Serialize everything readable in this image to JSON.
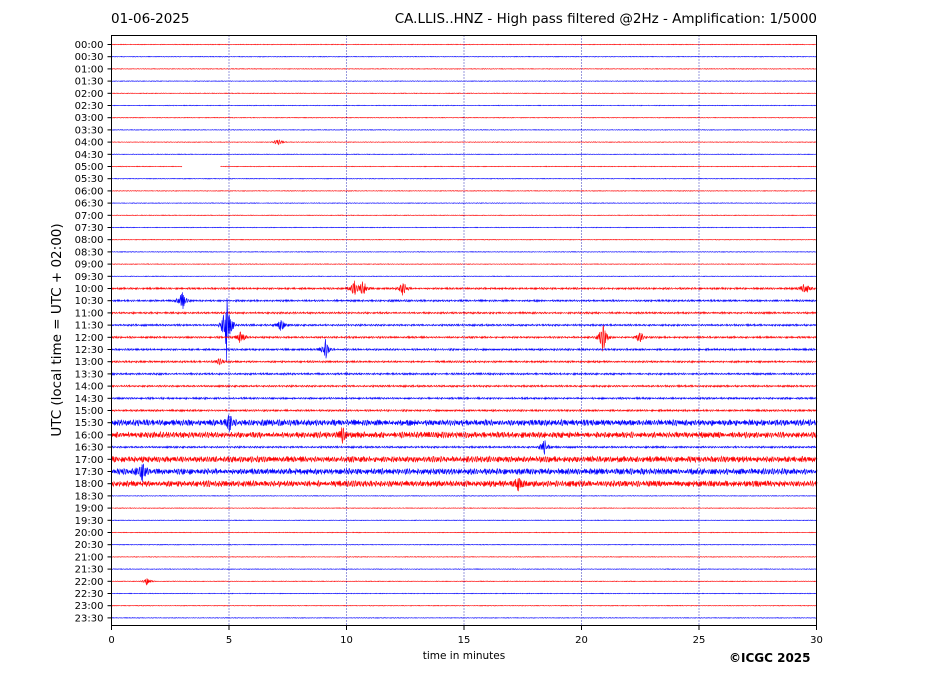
{
  "header": {
    "date": "01-06-2025",
    "title": "CA.LLIS..HNZ - High pass filtered @2Hz - Amplification: 1/5000"
  },
  "footer": {
    "copyright": "©ICGC 2025"
  },
  "chart_data": {
    "type": "line",
    "xlabel": "time in minutes",
    "ylabel": "UTC (local time = UTC + 02:00)",
    "xlim": [
      0,
      30
    ],
    "x_ticks": [
      "0",
      "5",
      "10",
      "15",
      "20",
      "25",
      "30"
    ],
    "y_ticks": [
      "00:00",
      "00:30",
      "01:00",
      "01:30",
      "02:00",
      "02:30",
      "03:00",
      "03:30",
      "04:00",
      "04:30",
      "05:00",
      "05:30",
      "06:00",
      "06:30",
      "07:00",
      "07:30",
      "08:00",
      "08:30",
      "09:00",
      "09:30",
      "10:00",
      "10:30",
      "11:00",
      "11:30",
      "12:00",
      "12:30",
      "13:00",
      "13:30",
      "14:00",
      "14:30",
      "15:00",
      "15:30",
      "16:00",
      "16:30",
      "17:00",
      "17:30",
      "18:00",
      "18:30",
      "19:00",
      "19:30",
      "20:00",
      "20:30",
      "21:00",
      "21:30",
      "22:00",
      "22:30",
      "23:00",
      "23:30"
    ],
    "trace_colors": [
      "#ff0000",
      "#0000ff"
    ],
    "vertical_gridlines_at": [
      5,
      10,
      15,
      20,
      25
    ],
    "noise_level": {
      "low_rows": [
        "00:00-09:30",
        "18:30-23:30"
      ],
      "high_rows": [
        "15:30",
        "16:00",
        "17:00",
        "17:30",
        "18:00"
      ]
    },
    "events": [
      {
        "row": "04:00",
        "minute": 7.1,
        "amplitude": 3
      },
      {
        "row": "05:00",
        "minute": 3.0,
        "amplitude": 0,
        "gap_until": 4.6
      },
      {
        "row": "10:00",
        "minute": 10.3,
        "amplitude": 7
      },
      {
        "row": "10:00",
        "minute": 10.7,
        "amplitude": 6
      },
      {
        "row": "10:00",
        "minute": 12.4,
        "amplitude": 5
      },
      {
        "row": "10:00",
        "minute": 29.5,
        "amplitude": 6
      },
      {
        "row": "10:30",
        "minute": 3.0,
        "amplitude": 7
      },
      {
        "row": "11:30",
        "minute": 4.9,
        "amplitude": 27
      },
      {
        "row": "11:30",
        "minute": 7.2,
        "amplitude": 6
      },
      {
        "row": "12:00",
        "minute": 5.5,
        "amplitude": 6
      },
      {
        "row": "12:00",
        "minute": 20.9,
        "amplitude": 11
      },
      {
        "row": "12:00",
        "minute": 22.5,
        "amplitude": 5
      },
      {
        "row": "12:30",
        "minute": 9.1,
        "amplitude": 8
      },
      {
        "row": "13:00",
        "minute": 4.6,
        "amplitude": 3
      },
      {
        "row": "15:30",
        "minute": 5.0,
        "amplitude": 6
      },
      {
        "row": "16:00",
        "minute": 9.8,
        "amplitude": 6
      },
      {
        "row": "16:30",
        "minute": 18.4,
        "amplitude": 6
      },
      {
        "row": "17:30",
        "minute": 1.3,
        "amplitude": 8
      },
      {
        "row": "18:00",
        "minute": 17.3,
        "amplitude": 6
      },
      {
        "row": "22:00",
        "minute": 1.5,
        "amplitude": 3
      }
    ]
  }
}
